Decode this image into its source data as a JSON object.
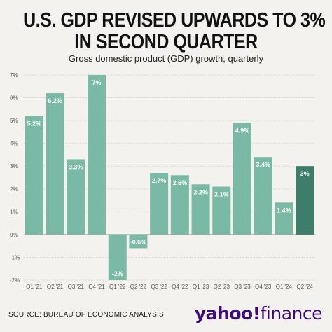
{
  "header": {
    "title_line1": "U.S. GDP REVISED UPWARDS TO 3%",
    "title_line2": "IN SECOND QUARTER",
    "subtitle": "Gross domestic product (GDP) growth, quarterly"
  },
  "footer": {
    "source": "SOURCE: BUREAU OF ECONOMIC ANALYSIS",
    "logo_text": "yahoo!finance"
  },
  "colors": {
    "bar": "#7ab9a5",
    "highlight_bar": "#3f7d6b",
    "grid": "#cfcfcf",
    "zero_line": "#999999",
    "logo": "#3c0c7c"
  },
  "chart_data": {
    "type": "bar",
    "title": "U.S. GDP REVISED UPWARDS TO 3% IN SECOND QUARTER",
    "subtitle": "Gross domestic product (GDP) growth, quarterly",
    "categories": [
      "Q1 '21",
      "Q2 '21",
      "Q3 '21",
      "Q4 '21",
      "Q1 '22",
      "Q2 '22",
      "Q3 '22",
      "Q4 '22",
      "Q1 '23",
      "Q2 '23",
      "Q3 '23",
      "Q4 '23",
      "Q1 '24",
      "Q2 '24"
    ],
    "values": [
      5.2,
      6.2,
      3.3,
      7,
      -2,
      -0.6,
      2.7,
      2.6,
      2.2,
      2.1,
      4.9,
      3.4,
      1.4,
      3
    ],
    "data_labels": [
      "5.2%",
      "6.2%",
      "3.3%",
      "7%",
      "-2%",
      "-0.6%",
      "2.7%",
      "2.6%",
      "2.2%",
      "2.1%",
      "4.9%",
      "3.4%",
      "1.4%",
      "3%"
    ],
    "highlight_index": 13,
    "ylim": [
      -2,
      7
    ],
    "yticks": [
      -2,
      -1,
      0,
      1,
      2,
      3,
      4,
      5,
      6,
      7
    ],
    "ytick_labels": [
      "-2%",
      "-1%",
      "0%",
      "1%",
      "2%",
      "3%",
      "4%",
      "5%",
      "6%",
      "7%"
    ],
    "grid": true,
    "xlabel": "",
    "ylabel": ""
  }
}
